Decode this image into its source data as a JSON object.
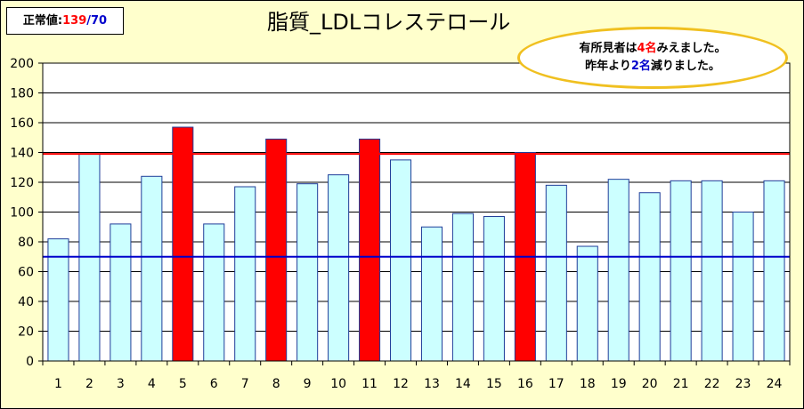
{
  "reference_box": {
    "label": "正常値:",
    "upper": "139",
    "separator": "/",
    "lower": "70"
  },
  "note": {
    "line1_prefix": "有所見者は",
    "line1_count": "4名",
    "line1_suffix": "みえました。",
    "line2_prefix": "昨年より",
    "line2_count": "2名",
    "line2_suffix": "減りました。"
  },
  "colors": {
    "normal_bar": "#ccffff",
    "flagged_bar": "#ff0000",
    "bar_border": "#1f3d99",
    "upper_line": "#ff0000",
    "lower_line": "#0000cc",
    "background": "#ffffcc"
  },
  "chart_data": {
    "type": "bar",
    "title": "脂質_LDLコレステロール",
    "categories": [
      "1",
      "2",
      "3",
      "4",
      "5",
      "6",
      "7",
      "8",
      "9",
      "10",
      "11",
      "12",
      "13",
      "14",
      "15",
      "16",
      "17",
      "18",
      "19",
      "20",
      "21",
      "22",
      "23",
      "24"
    ],
    "values": [
      82,
      139,
      92,
      124,
      157,
      92,
      117,
      149,
      119,
      125,
      149,
      135,
      90,
      99,
      97,
      140,
      118,
      77,
      122,
      113,
      121,
      121,
      100,
      121
    ],
    "flagged": [
      false,
      false,
      false,
      false,
      true,
      false,
      false,
      true,
      false,
      false,
      true,
      false,
      false,
      false,
      false,
      true,
      false,
      false,
      false,
      false,
      false,
      false,
      false,
      false
    ],
    "ylim": [
      0,
      200
    ],
    "yticks": [
      0,
      20,
      40,
      60,
      80,
      100,
      120,
      140,
      160,
      180,
      200
    ],
    "reference_lines": [
      139,
      70
    ],
    "grid": true,
    "xlabel": "",
    "ylabel": ""
  }
}
